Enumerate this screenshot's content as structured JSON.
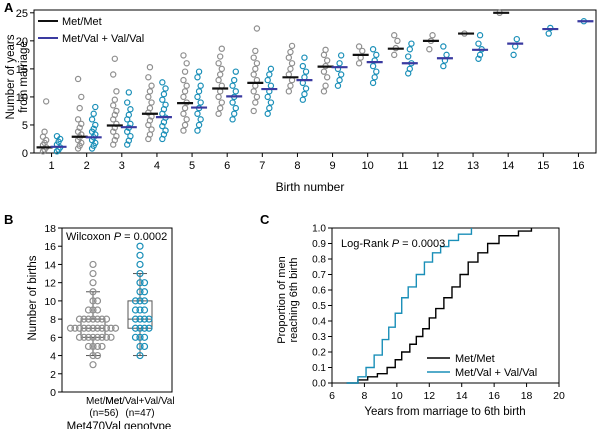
{
  "panels": {
    "a": "A",
    "b": "B",
    "c": "C"
  },
  "colors": {
    "metmet_points": "#8f8f8f",
    "metval_points": "#1a8fb8",
    "metmet_mean": "#111111",
    "metval_mean": "#3a3aa0",
    "curve_metmet": "#000000",
    "curve_metval": "#1a8fb8",
    "box": "#555555"
  },
  "chart_data": [
    {
      "panel": "A",
      "type": "scatter",
      "xlabel": "Birth number",
      "ylabel_lines": [
        "Number of years",
        "from marriage"
      ],
      "xticks": [
        "1",
        "2",
        "3",
        "4",
        "5",
        "6",
        "7",
        "8",
        "9",
        "10",
        "11",
        "12",
        "13",
        "14",
        "15",
        "16"
      ],
      "yticks": [
        0,
        5,
        10,
        15,
        20,
        25
      ],
      "ylim": [
        0,
        25.5
      ],
      "legend": [
        {
          "label": "Met/Met",
          "color": "#111111"
        },
        {
          "label": "Met/Val + Val/Val",
          "color": "#3a3aa0"
        }
      ],
      "series": [
        {
          "name": "Met/Met",
          "means": [
            1.0,
            2.9,
            4.9,
            7.0,
            8.9,
            11.5,
            12.5,
            13.5,
            15.4,
            17.5,
            18.6,
            20.0,
            21.3,
            25.0,
            null,
            null
          ],
          "points": [
            [
              0.3,
              0.6,
              1.0,
              1.4,
              1.8,
              2.3,
              2.9,
              3.8,
              9.2
            ],
            [
              0.8,
              1.3,
              1.8,
              2.3,
              2.8,
              3.3,
              3.8,
              4.5,
              5.2,
              6.0,
              8.0,
              10.0,
              13.2
            ],
            [
              1.5,
              2.3,
              3.0,
              3.8,
              4.5,
              5.2,
              6.0,
              6.8,
              7.5,
              8.5,
              9.5,
              11.0,
              14.0,
              16.8
            ],
            [
              2.5,
              3.3,
              4.2,
              5.0,
              5.8,
              6.5,
              7.2,
              8.0,
              9.0,
              10.0,
              11.0,
              12.0,
              13.5,
              15.3
            ],
            [
              4.0,
              5.0,
              6.0,
              7.0,
              8.0,
              9.0,
              10.0,
              11.0,
              12.0,
              13.0,
              14.5,
              16.0,
              17.4
            ],
            [
              7.0,
              8.0,
              9.0,
              10.0,
              11.0,
              12.0,
              13.0,
              14.0,
              15.0,
              16.0,
              17.2,
              18.6
            ],
            [
              7.5,
              9.0,
              10.0,
              11.0,
              12.0,
              13.0,
              14.0,
              15.0,
              16.0,
              17.0,
              18.2,
              22.2
            ],
            [
              11.0,
              12.0,
              13.0,
              14.0,
              15.0,
              16.0,
              17.0,
              18.0,
              19.1
            ],
            [
              11.0,
              12.0,
              13.5,
              14.5,
              15.5,
              16.5,
              17.5,
              18.4
            ],
            [
              16.0,
              17.0,
              18.2,
              19.0
            ],
            [
              17.5,
              18.7,
              20.0,
              21.0
            ],
            [
              18.5,
              20.0,
              21.0
            ],
            [
              21.3
            ],
            [
              25.0
            ],
            [],
            []
          ]
        },
        {
          "name": "Met/Val + Val/Val",
          "means": [
            1.1,
            2.8,
            4.6,
            6.4,
            8.1,
            10.1,
            11.4,
            13.0,
            15.3,
            16.2,
            16.0,
            16.9,
            18.4,
            19.5,
            22.1,
            23.5
          ],
          "points": [
            [
              0.3,
              0.6,
              1.0,
              1.5,
              2.0,
              2.5,
              3.0
            ],
            [
              0.8,
              1.3,
              1.8,
              2.3,
              2.8,
              3.3,
              3.8,
              4.3,
              5.0,
              6.0,
              7.0,
              8.2
            ],
            [
              1.5,
              2.2,
              3.0,
              3.8,
              4.5,
              5.2,
              6.0,
              6.8,
              7.8,
              9.0,
              10.8
            ],
            [
              2.5,
              3.3,
              4.0,
              4.8,
              5.5,
              6.3,
              7.0,
              7.8,
              8.6,
              9.5,
              10.5,
              11.5,
              12.6
            ],
            [
              4.0,
              5.0,
              6.0,
              7.0,
              8.0,
              9.0,
              10.0,
              11.0,
              12.0,
              13.5,
              14.5
            ],
            [
              6.0,
              7.0,
              8.0,
              9.0,
              10.0,
              11.0,
              12.0,
              13.0,
              14.5
            ],
            [
              7.0,
              8.0,
              9.0,
              10.0,
              11.0,
              12.0,
              13.0,
              14.0,
              15.0
            ],
            [
              9.5,
              10.5,
              11.5,
              12.5,
              13.5,
              14.5,
              15.5,
              17.0
            ],
            [
              12.0,
              13.0,
              14.0,
              15.0,
              16.0,
              17.4
            ],
            [
              12.5,
              13.5,
              14.5,
              15.5,
              16.5,
              17.5,
              18.5
            ],
            [
              14.2,
              15.0,
              16.0,
              17.2,
              18.5,
              19.5
            ],
            [
              15.5,
              16.5,
              17.5,
              19.0
            ],
            [
              16.8,
              17.5,
              18.5,
              19.5,
              21.0
            ],
            [
              17.5,
              19.0,
              20.3
            ],
            [
              21.3,
              22.3
            ],
            [
              23.5
            ]
          ]
        }
      ]
    },
    {
      "panel": "B",
      "type": "box",
      "ylabel": "Number of births",
      "yticks": [
        0,
        2,
        4,
        6,
        8,
        10,
        12,
        14,
        16,
        18
      ],
      "ylim": [
        0,
        18
      ],
      "annotation_prefix": "Wilcoxon ",
      "annotation_p": "P",
      "annotation_value": " = 0.0002",
      "xtitle": "Met470Val genotype",
      "groups": [
        {
          "label": "Met/Met",
          "n": "(n=56)",
          "whisker_low": 4,
          "q1": 6,
          "median": 7,
          "q3": 8,
          "whisker_high": 11,
          "points": [
            3,
            4,
            4,
            5,
            5,
            5,
            5,
            6,
            6,
            6,
            6,
            6,
            6,
            6,
            6,
            7,
            7,
            7,
            7,
            7,
            7,
            7,
            7,
            7,
            7,
            7,
            8,
            8,
            8,
            8,
            8,
            8,
            8,
            9,
            9,
            9,
            10,
            10,
            11,
            12,
            13,
            14
          ]
        },
        {
          "label": "Met/Val+Val/Val",
          "n": "(n=47)",
          "whisker_low": 4,
          "q1": 7,
          "median": 8,
          "q3": 10,
          "whisker_high": 13,
          "points": [
            4,
            5,
            5,
            6,
            6,
            6,
            7,
            7,
            7,
            7,
            8,
            8,
            8,
            8,
            9,
            9,
            9,
            10,
            10,
            10,
            11,
            11,
            12,
            12,
            13,
            14,
            15,
            16
          ]
        }
      ]
    },
    {
      "panel": "C",
      "type": "line",
      "ylabel_lines": [
        "Proportion of men",
        "reaching 6th birth"
      ],
      "xlabel": "Years from marriage to 6th birth",
      "xticks": [
        6,
        8,
        10,
        12,
        14,
        16,
        18,
        20
      ],
      "yticks": [
        "0.0",
        "0.1",
        "0.2",
        "0.3",
        "0.4",
        "0.5",
        "0.6",
        "0.7",
        "0.8",
        "0.9",
        "1.0"
      ],
      "xlim": [
        6,
        20
      ],
      "ylim": [
        0,
        1
      ],
      "annotation_prefix": "Log-Rank ",
      "annotation_p": "P",
      "annotation_value": " = 0.0003",
      "series": [
        {
          "name": "Met/Met",
          "color": "#000000",
          "points": [
            [
              7.0,
              0.0
            ],
            [
              7.6,
              0.02
            ],
            [
              8.2,
              0.04
            ],
            [
              8.8,
              0.06
            ],
            [
              9.4,
              0.1
            ],
            [
              9.9,
              0.15
            ],
            [
              10.3,
              0.2
            ],
            [
              10.8,
              0.25
            ],
            [
              11.2,
              0.3
            ],
            [
              11.6,
              0.35
            ],
            [
              12.0,
              0.42
            ],
            [
              12.4,
              0.48
            ],
            [
              12.9,
              0.55
            ],
            [
              13.4,
              0.62
            ],
            [
              13.9,
              0.7
            ],
            [
              14.4,
              0.78
            ],
            [
              15.0,
              0.84
            ],
            [
              15.6,
              0.9
            ],
            [
              16.3,
              0.95
            ],
            [
              17.5,
              0.98
            ],
            [
              18.3,
              1.0
            ]
          ]
        },
        {
          "name": "Met/Val + Val/Val",
          "color": "#1a8fb8",
          "points": [
            [
              7.1,
              0.0
            ],
            [
              7.6,
              0.04
            ],
            [
              8.1,
              0.1
            ],
            [
              8.6,
              0.18
            ],
            [
              9.1,
              0.28
            ],
            [
              9.5,
              0.36
            ],
            [
              9.9,
              0.45
            ],
            [
              10.3,
              0.55
            ],
            [
              10.7,
              0.62
            ],
            [
              11.2,
              0.7
            ],
            [
              11.7,
              0.78
            ],
            [
              12.2,
              0.84
            ],
            [
              12.7,
              0.88
            ],
            [
              13.2,
              0.92
            ],
            [
              13.8,
              0.96
            ],
            [
              14.6,
              1.0
            ]
          ]
        }
      ]
    }
  ]
}
